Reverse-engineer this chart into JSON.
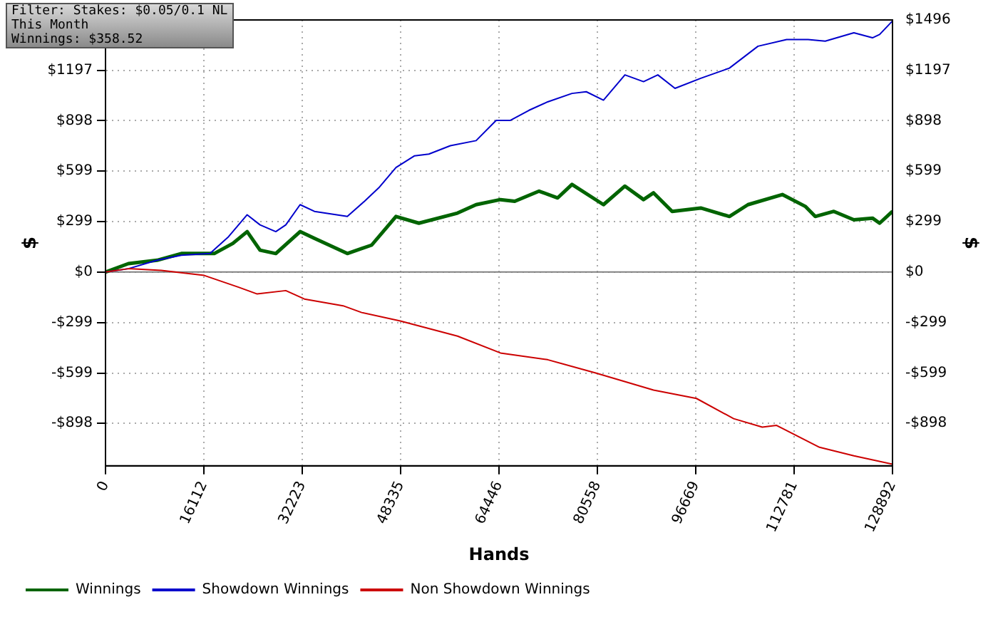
{
  "chart_data": {
    "type": "line",
    "xlabel": "Hands",
    "ylabel": "$",
    "y2label": "$",
    "annotations": [
      "Filter: Stakes: $0.05/0.1 NL",
      "This Month",
      "Winnings: $358.52"
    ],
    "xlim": [
      0,
      128892
    ],
    "xticks": [
      0,
      16112,
      32223,
      48335,
      64446,
      80558,
      96669,
      112781,
      128892
    ],
    "ylim": [
      -1150,
      1496
    ],
    "yticks": [
      {
        "value": -898,
        "label": "-$898"
      },
      {
        "value": -599,
        "label": "-$599"
      },
      {
        "value": -299,
        "label": "-$299"
      },
      {
        "value": 0,
        "label": "$0"
      },
      {
        "value": 299,
        "label": "$299"
      },
      {
        "value": 599,
        "label": "$599"
      },
      {
        "value": 898,
        "label": "$898"
      },
      {
        "value": 1197,
        "label": "$1197"
      }
    ],
    "y2lim": [
      -1150,
      1496
    ],
    "y2ticks": [
      {
        "value": -898,
        "label": "-$898"
      },
      {
        "value": -599,
        "label": "-$599"
      },
      {
        "value": -299,
        "label": "-$299"
      },
      {
        "value": 0,
        "label": "$0"
      },
      {
        "value": 299,
        "label": "$299"
      },
      {
        "value": 599,
        "label": "$599"
      },
      {
        "value": 898,
        "label": "$898"
      },
      {
        "value": 1197,
        "label": "$1197"
      },
      {
        "value": 1496,
        "label": "$1496"
      }
    ],
    "grid": true,
    "legend": "bottom",
    "marker": "none",
    "line_style": "solid",
    "ref_lines": [
      {
        "axis": "y",
        "value": 0,
        "color": "#808080"
      }
    ],
    "series": [
      {
        "name": "Winnings",
        "color": "#006400",
        "x": [
          0,
          3750,
          8437,
          12421,
          17811,
          20857,
          23201,
          25310,
          27888,
          31872,
          34215,
          39605,
          43590,
          47573,
          51323,
          57650,
          60697,
          64681,
          67025,
          71008,
          74055,
          76398,
          81554,
          85069,
          88116,
          89756,
          92803,
          97490,
          102177,
          105223,
          110848,
          114597,
          116238,
          119284,
          122565,
          125612,
          126784,
          128892
        ],
        "values": [
          0,
          50,
          70,
          110,
          110,
          170,
          240,
          130,
          110,
          240,
          200,
          110,
          160,
          330,
          290,
          350,
          400,
          430,
          420,
          480,
          440,
          520,
          400,
          510,
          430,
          470,
          360,
          380,
          330,
          400,
          460,
          390,
          330,
          360,
          310,
          320,
          290,
          360
        ]
      },
      {
        "name": "Showdown Winnings",
        "color": "#0000cc",
        "x": [
          0,
          3750,
          8437,
          12421,
          17108,
          20154,
          23201,
          25310,
          27888,
          29528,
          31872,
          34215,
          39605,
          42417,
          44761,
          47573,
          50620,
          52963,
          56478,
          60697,
          63978,
          66321,
          69368,
          72414,
          76398,
          78742,
          81554,
          85069,
          88116,
          90459,
          93271,
          97490,
          102177,
          106864,
          111551,
          115066,
          117878,
          122565,
          125612,
          126784,
          128892
        ],
        "values": [
          0,
          20,
          70,
          100,
          110,
          210,
          340,
          280,
          240,
          280,
          400,
          360,
          330,
          420,
          500,
          620,
          690,
          700,
          750,
          780,
          900,
          900,
          960,
          1010,
          1060,
          1070,
          1020,
          1170,
          1130,
          1170,
          1090,
          1150,
          1210,
          1340,
          1380,
          1380,
          1370,
          1420,
          1390,
          1410,
          1490
        ]
      },
      {
        "name": "Non Showdown Winnings",
        "color": "#cc0000",
        "x": [
          0,
          3750,
          9140,
          16170,
          21795,
          24841,
          29528,
          32575,
          38902,
          41949,
          48276,
          57650,
          64681,
          72414,
          80382,
          89756,
          96786,
          102880,
          107567,
          109910,
          116941,
          122565,
          128892
        ],
        "values": [
          0,
          20,
          10,
          -20,
          -90,
          -130,
          -110,
          -160,
          -200,
          -240,
          -290,
          -380,
          -480,
          -520,
          -600,
          -700,
          -750,
          -870,
          -920,
          -910,
          -1040,
          -1090,
          -1140
        ]
      }
    ]
  }
}
